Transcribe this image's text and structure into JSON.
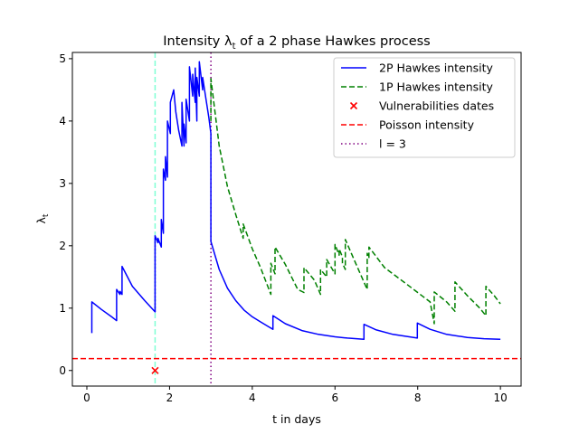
{
  "chart_data": {
    "type": "line",
    "title": "Intensity λ",
    "title_sub": "t",
    "title_rest": " of a 2 phase Hawkes process",
    "xlabel": "t in days",
    "ylabel": "λ",
    "ylabel_sub": "t",
    "xlim": [
      -0.35,
      10.5
    ],
    "ylim": [
      -0.25,
      5.1
    ],
    "xticks": [
      0,
      2,
      4,
      6,
      8,
      10
    ],
    "yticks": [
      0,
      1,
      2,
      3,
      4,
      5
    ],
    "legend_position": "top-right",
    "legend": [
      {
        "label": "2P Hawkes intensity",
        "kind": "line",
        "color": "#0000ff",
        "dash": "solid"
      },
      {
        "label": "1P Hawkes intensity",
        "kind": "line",
        "color": "#008000",
        "dash": "dashed"
      },
      {
        "label": "Vulnerabilities dates",
        "kind": "marker",
        "color": "#ff0000"
      },
      {
        "label": "Poisson intensity",
        "kind": "line",
        "color": "#ff0000",
        "dash": "dashed"
      },
      {
        "label": "l = 3",
        "kind": "line",
        "color": "#800080",
        "dash": "dotted"
      }
    ],
    "series": [
      {
        "name": "2P Hawkes intensity",
        "color": "#0000ff",
        "points": [
          [
            0.12,
            0.6
          ],
          [
            0.12,
            1.1
          ],
          [
            0.35,
            0.98
          ],
          [
            0.6,
            0.86
          ],
          [
            0.72,
            0.8
          ],
          [
            0.72,
            1.3
          ],
          [
            0.8,
            1.22
          ],
          [
            0.8,
            1.27
          ],
          [
            0.85,
            1.22
          ],
          [
            0.85,
            1.67
          ],
          [
            1.1,
            1.35
          ],
          [
            1.4,
            1.12
          ],
          [
            1.65,
            0.94
          ],
          [
            1.65,
            2.16
          ],
          [
            1.72,
            2.05
          ],
          [
            1.72,
            2.12
          ],
          [
            1.8,
            1.98
          ],
          [
            1.8,
            2.42
          ],
          [
            1.85,
            2.2
          ],
          [
            1.85,
            3.23
          ],
          [
            1.9,
            3.05
          ],
          [
            1.9,
            3.43
          ],
          [
            1.95,
            3.1
          ],
          [
            1.95,
            4.0
          ],
          [
            2.02,
            3.8
          ],
          [
            2.02,
            4.3
          ],
          [
            2.1,
            4.5
          ],
          [
            2.15,
            4.15
          ],
          [
            2.22,
            3.85
          ],
          [
            2.3,
            3.6
          ],
          [
            2.3,
            4.3
          ],
          [
            2.35,
            3.6
          ],
          [
            2.35,
            3.95
          ],
          [
            2.4,
            3.65
          ],
          [
            2.4,
            4.35
          ],
          [
            2.48,
            4.0
          ],
          [
            2.48,
            4.87
          ],
          [
            2.56,
            4.4
          ],
          [
            2.56,
            4.75
          ],
          [
            2.62,
            4.3
          ],
          [
            2.62,
            4.85
          ],
          [
            2.66,
            4.0
          ],
          [
            2.66,
            4.7
          ],
          [
            2.72,
            4.4
          ],
          [
            2.72,
            4.95
          ],
          [
            2.8,
            4.5
          ],
          [
            2.8,
            4.7
          ],
          [
            2.88,
            4.35
          ],
          [
            2.95,
            4.05
          ],
          [
            3.0,
            3.8
          ],
          [
            3.0,
            2.07
          ],
          [
            3.2,
            1.62
          ],
          [
            3.4,
            1.32
          ],
          [
            3.6,
            1.12
          ],
          [
            3.8,
            0.97
          ],
          [
            4.0,
            0.86
          ],
          [
            4.2,
            0.78
          ],
          [
            4.4,
            0.7
          ],
          [
            4.5,
            0.66
          ],
          [
            4.5,
            0.88
          ],
          [
            4.8,
            0.75
          ],
          [
            5.2,
            0.64
          ],
          [
            5.6,
            0.58
          ],
          [
            6.0,
            0.54
          ],
          [
            6.3,
            0.52
          ],
          [
            6.7,
            0.5
          ],
          [
            6.7,
            0.74
          ],
          [
            7.0,
            0.65
          ],
          [
            7.4,
            0.58
          ],
          [
            7.99,
            0.52
          ],
          [
            7.99,
            0.76
          ],
          [
            8.3,
            0.66
          ],
          [
            8.7,
            0.58
          ],
          [
            9.2,
            0.53
          ],
          [
            9.6,
            0.51
          ],
          [
            10.0,
            0.5
          ]
        ]
      },
      {
        "name": "1P Hawkes intensity",
        "color": "#008000",
        "points": [
          [
            3.0,
            4.0
          ],
          [
            3.0,
            4.68
          ],
          [
            3.2,
            3.6
          ],
          [
            3.4,
            2.95
          ],
          [
            3.6,
            2.5
          ],
          [
            3.78,
            2.12
          ],
          [
            3.78,
            2.35
          ],
          [
            4.0,
            1.95
          ],
          [
            4.2,
            1.65
          ],
          [
            4.45,
            1.22
          ],
          [
            4.45,
            1.72
          ],
          [
            4.55,
            1.55
          ],
          [
            4.55,
            1.98
          ],
          [
            4.8,
            1.7
          ],
          [
            5.1,
            1.3
          ],
          [
            5.25,
            1.25
          ],
          [
            5.25,
            1.65
          ],
          [
            5.5,
            1.45
          ],
          [
            5.65,
            1.22
          ],
          [
            5.65,
            1.62
          ],
          [
            5.8,
            1.5
          ],
          [
            5.8,
            1.78
          ],
          [
            6.0,
            1.55
          ],
          [
            6.0,
            2.02
          ],
          [
            6.1,
            1.85
          ],
          [
            6.1,
            1.95
          ],
          [
            6.18,
            1.82
          ],
          [
            6.18,
            1.72
          ],
          [
            6.25,
            1.62
          ],
          [
            6.25,
            2.1
          ],
          [
            6.5,
            1.72
          ],
          [
            6.78,
            1.3
          ],
          [
            6.78,
            1.88
          ],
          [
            6.82,
            1.8
          ],
          [
            6.82,
            1.98
          ],
          [
            7.2,
            1.65
          ],
          [
            7.6,
            1.45
          ],
          [
            8.0,
            1.25
          ],
          [
            8.3,
            1.1
          ],
          [
            8.4,
            0.75
          ],
          [
            8.4,
            1.26
          ],
          [
            8.7,
            1.1
          ],
          [
            8.9,
            0.95
          ],
          [
            8.9,
            1.42
          ],
          [
            9.2,
            1.2
          ],
          [
            9.5,
            1.0
          ],
          [
            9.65,
            0.88
          ],
          [
            9.65,
            1.35
          ],
          [
            9.85,
            1.2
          ],
          [
            10.0,
            1.07
          ]
        ]
      }
    ],
    "vulnerability_dates": [
      [
        1.65,
        0.0
      ]
    ],
    "poisson_intensity": 0.19,
    "vlines": [
      {
        "x": 1.65,
        "color": "#7fffd4",
        "style": "dashed"
      },
      {
        "x": 3.0,
        "color": "#800080",
        "style": "dotted"
      }
    ],
    "blue_dotted_jump": {
      "x": 1.65,
      "y0": 0.94,
      "y1": 2.16
    }
  }
}
